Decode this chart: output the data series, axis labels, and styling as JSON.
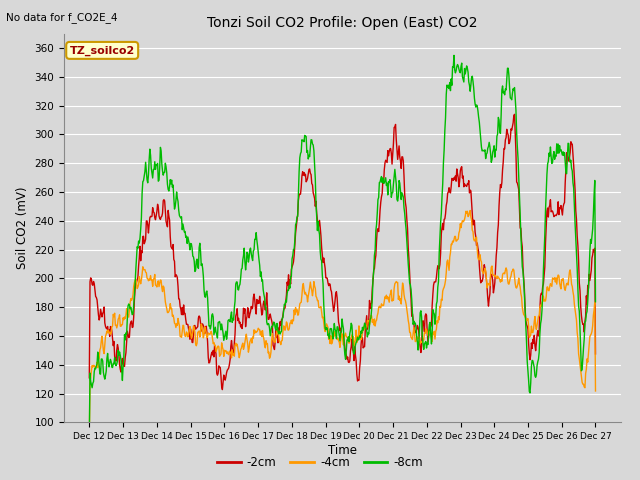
{
  "title": "Tonzi Soil CO2 Profile: Open (East) CO2",
  "subtitle": "No data for f_CO2E_4",
  "ylabel": "Soil CO2 (mV)",
  "xlabel": "Time",
  "legend_label": "TZ_soilco2",
  "series_labels": [
    "-2cm",
    "-4cm",
    "-8cm"
  ],
  "series_colors": [
    "#cc0000",
    "#ff9900",
    "#00bb00"
  ],
  "ylim": [
    100,
    370
  ],
  "yticks": [
    100,
    120,
    140,
    160,
    180,
    200,
    220,
    240,
    260,
    280,
    300,
    320,
    340,
    360
  ],
  "xtick_labels": [
    "Dec 12",
    "Dec 13",
    "Dec 14",
    "Dec 15",
    "Dec 16",
    "Dec 17",
    "Dec 18",
    "Dec 19",
    "Dec 20",
    "Dec 21",
    "Dec 22",
    "Dec 23",
    "Dec 24",
    "Dec 25",
    "Dec 26",
    "Dec 27"
  ],
  "bg_color": "#d8d8d8",
  "plot_bg_color": "#d8d8d8",
  "grid_color": "#ffffff",
  "linewidth": 1.0,
  "n_per_day": 48,
  "n_days": 15,
  "red_kx": [
    0,
    0.3,
    0.6,
    1.0,
    1.3,
    1.6,
    2.0,
    2.3,
    2.6,
    3.0,
    3.3,
    3.6,
    4.0,
    4.3,
    4.6,
    5.0,
    5.3,
    5.6,
    6.0,
    6.3,
    6.6,
    7.0,
    7.3,
    7.6,
    8.0,
    8.3,
    8.6,
    9.0,
    9.3,
    9.6,
    10.0,
    10.3,
    10.6,
    11.0,
    11.3,
    11.6,
    12.0,
    12.3,
    12.6,
    13.0,
    13.3,
    13.6,
    14.0,
    14.3,
    14.6,
    15.0
  ],
  "red_ky": [
    195,
    185,
    165,
    140,
    175,
    230,
    250,
    245,
    195,
    160,
    170,
    145,
    130,
    155,
    175,
    185,
    175,
    160,
    205,
    270,
    265,
    205,
    185,
    145,
    140,
    175,
    245,
    300,
    285,
    165,
    160,
    200,
    260,
    280,
    260,
    200,
    195,
    295,
    305,
    145,
    165,
    245,
    250,
    300,
    165,
    225
  ],
  "orange_kx": [
    0,
    0.3,
    0.6,
    1.0,
    1.3,
    1.6,
    2.0,
    2.3,
    2.6,
    3.0,
    3.3,
    3.6,
    4.0,
    4.3,
    4.6,
    5.0,
    5.3,
    5.6,
    6.0,
    6.3,
    6.6,
    7.0,
    7.3,
    7.6,
    8.0,
    8.3,
    8.6,
    9.0,
    9.3,
    9.6,
    10.0,
    10.3,
    10.6,
    11.0,
    11.3,
    11.6,
    12.0,
    12.3,
    12.6,
    13.0,
    13.3,
    13.6,
    14.0,
    14.3,
    14.6,
    15.0
  ],
  "orange_ky": [
    135,
    145,
    170,
    165,
    190,
    205,
    195,
    185,
    165,
    160,
    160,
    155,
    145,
    150,
    155,
    160,
    155,
    160,
    165,
    185,
    195,
    165,
    160,
    155,
    160,
    165,
    175,
    195,
    185,
    160,
    160,
    165,
    205,
    240,
    245,
    205,
    200,
    200,
    205,
    165,
    175,
    195,
    195,
    200,
    120,
    180
  ],
  "green_kx": [
    0,
    0.3,
    0.6,
    1.0,
    1.3,
    1.6,
    2.0,
    2.3,
    2.6,
    3.0,
    3.3,
    3.6,
    4.0,
    4.3,
    4.6,
    5.0,
    5.3,
    5.6,
    6.0,
    6.3,
    6.6,
    7.0,
    7.3,
    7.6,
    8.0,
    8.3,
    8.6,
    9.0,
    9.3,
    9.6,
    10.0,
    10.3,
    10.6,
    11.0,
    11.3,
    11.6,
    12.0,
    12.3,
    12.6,
    13.0,
    13.3,
    13.6,
    14.0,
    14.3,
    14.6,
    15.0
  ],
  "green_ky": [
    127,
    135,
    140,
    145,
    180,
    265,
    285,
    270,
    255,
    220,
    215,
    165,
    160,
    175,
    215,
    220,
    165,
    160,
    200,
    295,
    290,
    170,
    165,
    160,
    160,
    165,
    265,
    265,
    260,
    165,
    160,
    175,
    335,
    345,
    340,
    295,
    290,
    330,
    335,
    130,
    135,
    285,
    290,
    280,
    135,
    270
  ]
}
